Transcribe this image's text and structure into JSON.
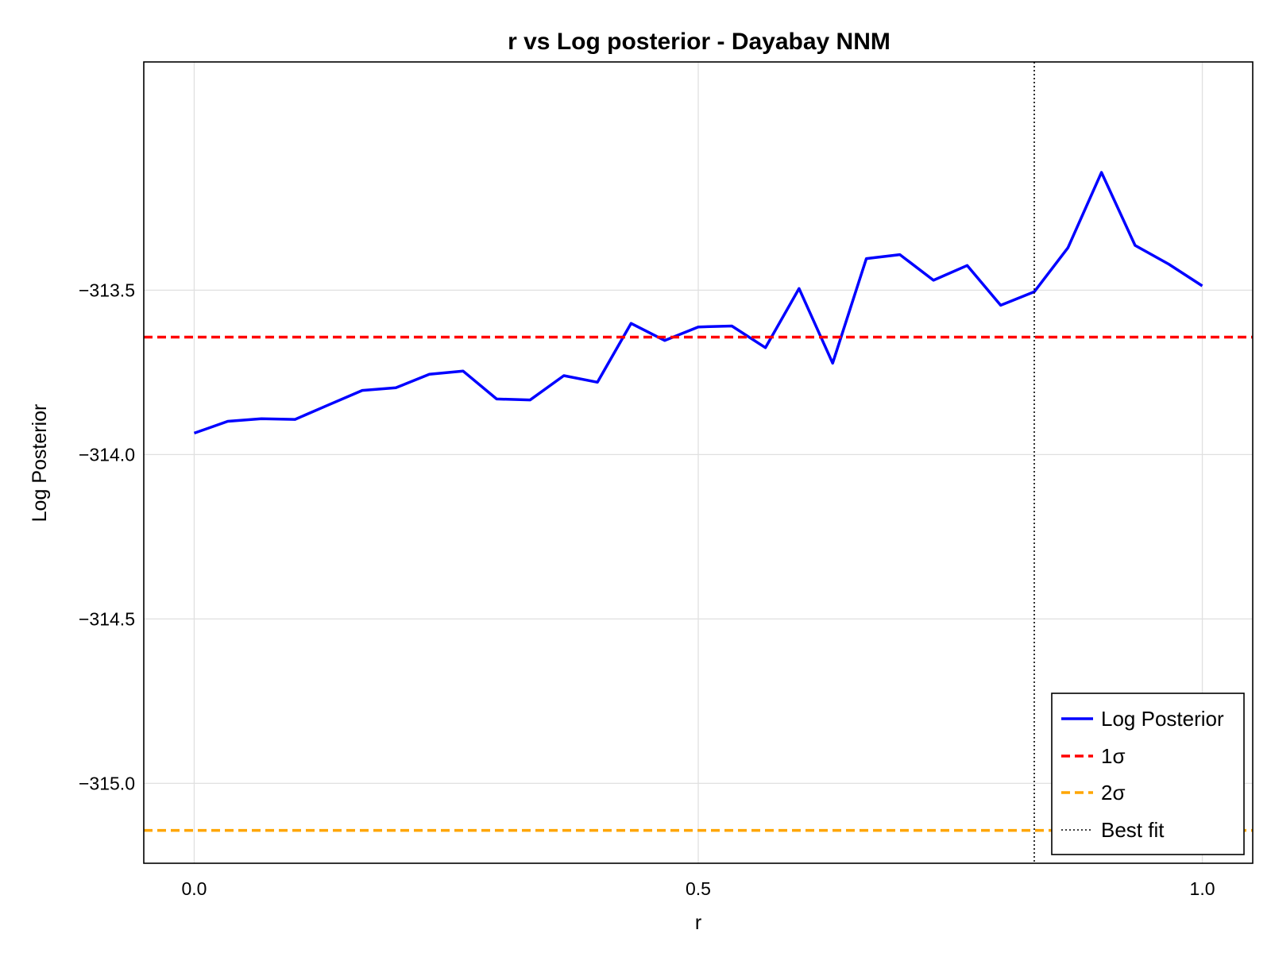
{
  "chart_data": {
    "type": "line",
    "title": "r vs Log posterior - Dayabay NNM",
    "xlabel": "r",
    "ylabel": "Log Posterior",
    "xlim": [
      -0.05,
      1.05
    ],
    "ylim": [
      -315.243,
      -312.806
    ],
    "xticks": [
      0.0,
      0.5,
      1.0
    ],
    "xtick_labels": [
      "0.0",
      "0.5",
      "1.0"
    ],
    "yticks": [
      -313.5,
      -314.0,
      -314.5,
      -315.0
    ],
    "ytick_labels": [
      "−313.5",
      "−314.0",
      "−314.5",
      "−315.0"
    ],
    "grid": true,
    "legend_position": "bottom-right",
    "series": [
      {
        "name": "Log Posterior",
        "color": "#0000ff",
        "style": "solid",
        "x": [
          0.0,
          0.0333,
          0.0667,
          0.1,
          0.1333,
          0.1667,
          0.2,
          0.2333,
          0.2667,
          0.3,
          0.3333,
          0.3667,
          0.4,
          0.4333,
          0.4667,
          0.5,
          0.5333,
          0.5667,
          0.6,
          0.6333,
          0.6667,
          0.7,
          0.7333,
          0.7667,
          0.8,
          0.8333,
          0.8667,
          0.9,
          0.9333,
          0.9667,
          1.0
        ],
        "y": [
          -313.935,
          -313.899,
          -313.891,
          -313.893,
          -313.849,
          -313.805,
          -313.797,
          -313.756,
          -313.746,
          -313.831,
          -313.834,
          -313.76,
          -313.78,
          -313.601,
          -313.653,
          -313.612,
          -313.609,
          -313.675,
          -313.495,
          -313.722,
          -313.404,
          -313.392,
          -313.47,
          -313.425,
          -313.546,
          -313.505,
          -313.371,
          -313.142,
          -313.364,
          -313.421,
          -313.487
        ]
      }
    ],
    "hlines": [
      {
        "name": "1σ",
        "y": -313.643,
        "color": "#ff0000",
        "style": "dashed"
      },
      {
        "name": "2σ",
        "y": -315.143,
        "color": "#ffa500",
        "style": "dashed"
      }
    ],
    "vlines": [
      {
        "name": "Best fit",
        "x": 0.8333,
        "color": "#000000",
        "style": "dotted"
      }
    ]
  }
}
